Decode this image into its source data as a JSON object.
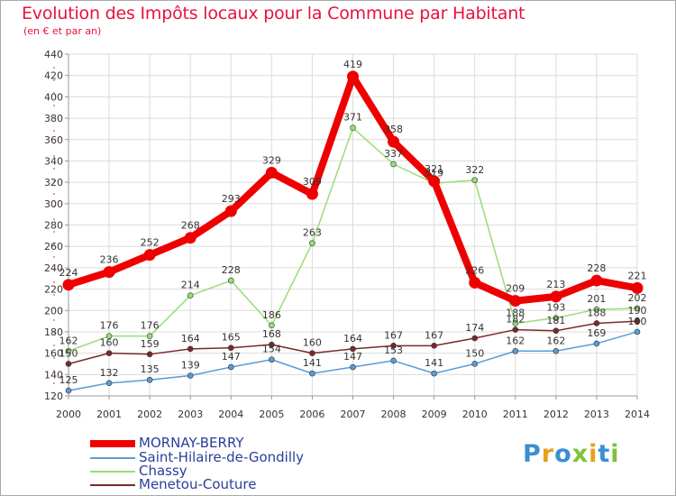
{
  "title": "Evolution des Impôts locaux pour la Commune par Habitant",
  "subtitle": "(en € et par an)",
  "logo": "Proxiti",
  "chart_data": {
    "type": "line",
    "x": [
      "2000",
      "2001",
      "2002",
      "2003",
      "2004",
      "2005",
      "2006",
      "2007",
      "2008",
      "2009",
      "2010",
      "2011",
      "2012",
      "2013",
      "2014"
    ],
    "ylim": [
      120,
      440
    ],
    "yticks": [
      120,
      140,
      160,
      180,
      200,
      220,
      240,
      260,
      280,
      300,
      320,
      340,
      360,
      380,
      400,
      420,
      440
    ],
    "grid": true,
    "series": [
      {
        "name": "Saint-Hilaire-de-Gondilly",
        "color": "#5b9bd5",
        "values": [
          125,
          132,
          135,
          139,
          147,
          154,
          141,
          147,
          153,
          141,
          150,
          162,
          162,
          169,
          180
        ]
      },
      {
        "name": "Chassy",
        "color": "#99dd77",
        "values": [
          162,
          176,
          176,
          214,
          228,
          186,
          263,
          371,
          337,
          319,
          322,
          188,
          193,
          201,
          202
        ]
      },
      {
        "name": "Menetou-Couture",
        "color": "#7a2a2a",
        "values": [
          150,
          160,
          159,
          164,
          165,
          168,
          160,
          164,
          167,
          167,
          174,
          182,
          181,
          188,
          190
        ]
      },
      {
        "name": "MORNAY-BERRY",
        "color": "#ee0000",
        "values": [
          224,
          236,
          252,
          268,
          293,
          329,
          309,
          419,
          358,
          321,
          226,
          209,
          213,
          228,
          221
        ]
      }
    ],
    "legend": [
      "MORNAY-BERRY",
      "Saint-Hilaire-de-Gondilly",
      "Chassy",
      "Menetou-Couture"
    ]
  }
}
